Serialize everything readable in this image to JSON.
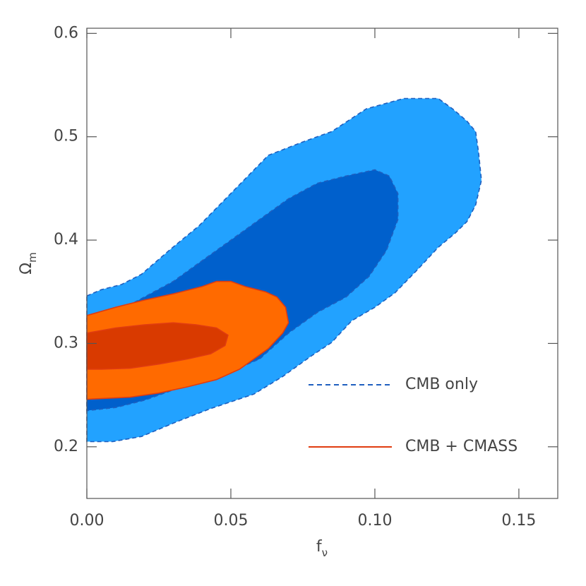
{
  "chart_data": {
    "type": "contour",
    "xlabel": "f",
    "xlabel_sub": "ν",
    "ylabel": "Ω",
    "ylabel_sub": "m",
    "xlim": [
      0,
      0.1635
    ],
    "ylim": [
      0.15,
      0.605
    ],
    "xticks": [
      {
        "value": 0,
        "label": "0.00"
      },
      {
        "value": 0.05,
        "label": "0.05"
      },
      {
        "value": 0.1,
        "label": "0.10"
      },
      {
        "value": 0.15,
        "label": "0.15"
      }
    ],
    "yticks": [
      0.2,
      0.3,
      0.4,
      0.5,
      0.6
    ],
    "series": [
      {
        "name": "CMB only",
        "color": "#1f5fbf",
        "dashed": true,
        "regions": [
          {
            "color": "#22a2ff",
            "x": [
              0,
              0.005,
              0.012,
              0.019,
              0.029,
              0.039,
              0.051,
              0.063,
              0.075,
              0.085,
              0.097,
              0.11,
              0.122,
              0.127,
              0.132,
              0.135,
              0.136,
              0.137,
              0.135,
              0.132,
              0.128,
              0.122,
              0.115,
              0.107,
              0.1,
              0.092,
              0.085,
              0.078,
              0.068,
              0.058,
              0.043,
              0.031,
              0.019,
              0.009,
              0
            ],
            "y": [
              0.346,
              0.352,
              0.357,
              0.367,
              0.391,
              0.414,
              0.448,
              0.482,
              0.495,
              0.505,
              0.527,
              0.537,
              0.537,
              0.527,
              0.515,
              0.505,
              0.485,
              0.458,
              0.434,
              0.418,
              0.407,
              0.393,
              0.372,
              0.349,
              0.335,
              0.322,
              0.301,
              0.288,
              0.268,
              0.251,
              0.237,
              0.224,
              0.21,
              0.205,
              0.205
            ]
          },
          {
            "color": "#0060cc",
            "x": [
              0,
              0.01,
              0.02,
              0.03,
              0.04,
              0.05,
              0.06,
              0.07,
              0.08,
              0.09,
              0.1,
              0.105,
              0.108,
              0.108,
              0.104,
              0.098,
              0.09,
              0.08,
              0.07,
              0.06,
              0.05,
              0.04,
              0.03,
              0.02,
              0.01,
              0
            ],
            "y": [
              0.31,
              0.33,
              0.345,
              0.36,
              0.38,
              0.4,
              0.42,
              0.44,
              0.455,
              0.462,
              0.468,
              0.462,
              0.445,
              0.42,
              0.39,
              0.365,
              0.345,
              0.33,
              0.31,
              0.285,
              0.273,
              0.265,
              0.255,
              0.245,
              0.238,
              0.235
            ]
          }
        ]
      },
      {
        "name": "CMB + CMASS",
        "color": "#e03c10",
        "dashed": false,
        "regions": [
          {
            "color": "#ff6a00",
            "x": [
              0,
              0.01,
              0.02,
              0.03,
              0.04,
              0.045,
              0.05,
              0.055,
              0.062,
              0.066,
              0.069,
              0.07,
              0.068,
              0.063,
              0.058,
              0.053,
              0.045,
              0.035,
              0.025,
              0.015,
              0
            ],
            "y": [
              0.327,
              0.335,
              0.342,
              0.348,
              0.355,
              0.36,
              0.36,
              0.355,
              0.35,
              0.345,
              0.335,
              0.32,
              0.31,
              0.295,
              0.285,
              0.275,
              0.265,
              0.258,
              0.252,
              0.248,
              0.246
            ]
          },
          {
            "color": "#d93a00",
            "x": [
              0,
              0.01,
              0.02,
              0.03,
              0.038,
              0.045,
              0.049,
              0.048,
              0.043,
              0.035,
              0.025,
              0.015,
              0.005,
              0
            ],
            "y": [
              0.31,
              0.315,
              0.318,
              0.32,
              0.318,
              0.315,
              0.308,
              0.298,
              0.29,
              0.285,
              0.28,
              0.276,
              0.275,
              0.275
            ]
          }
        ]
      }
    ]
  }
}
